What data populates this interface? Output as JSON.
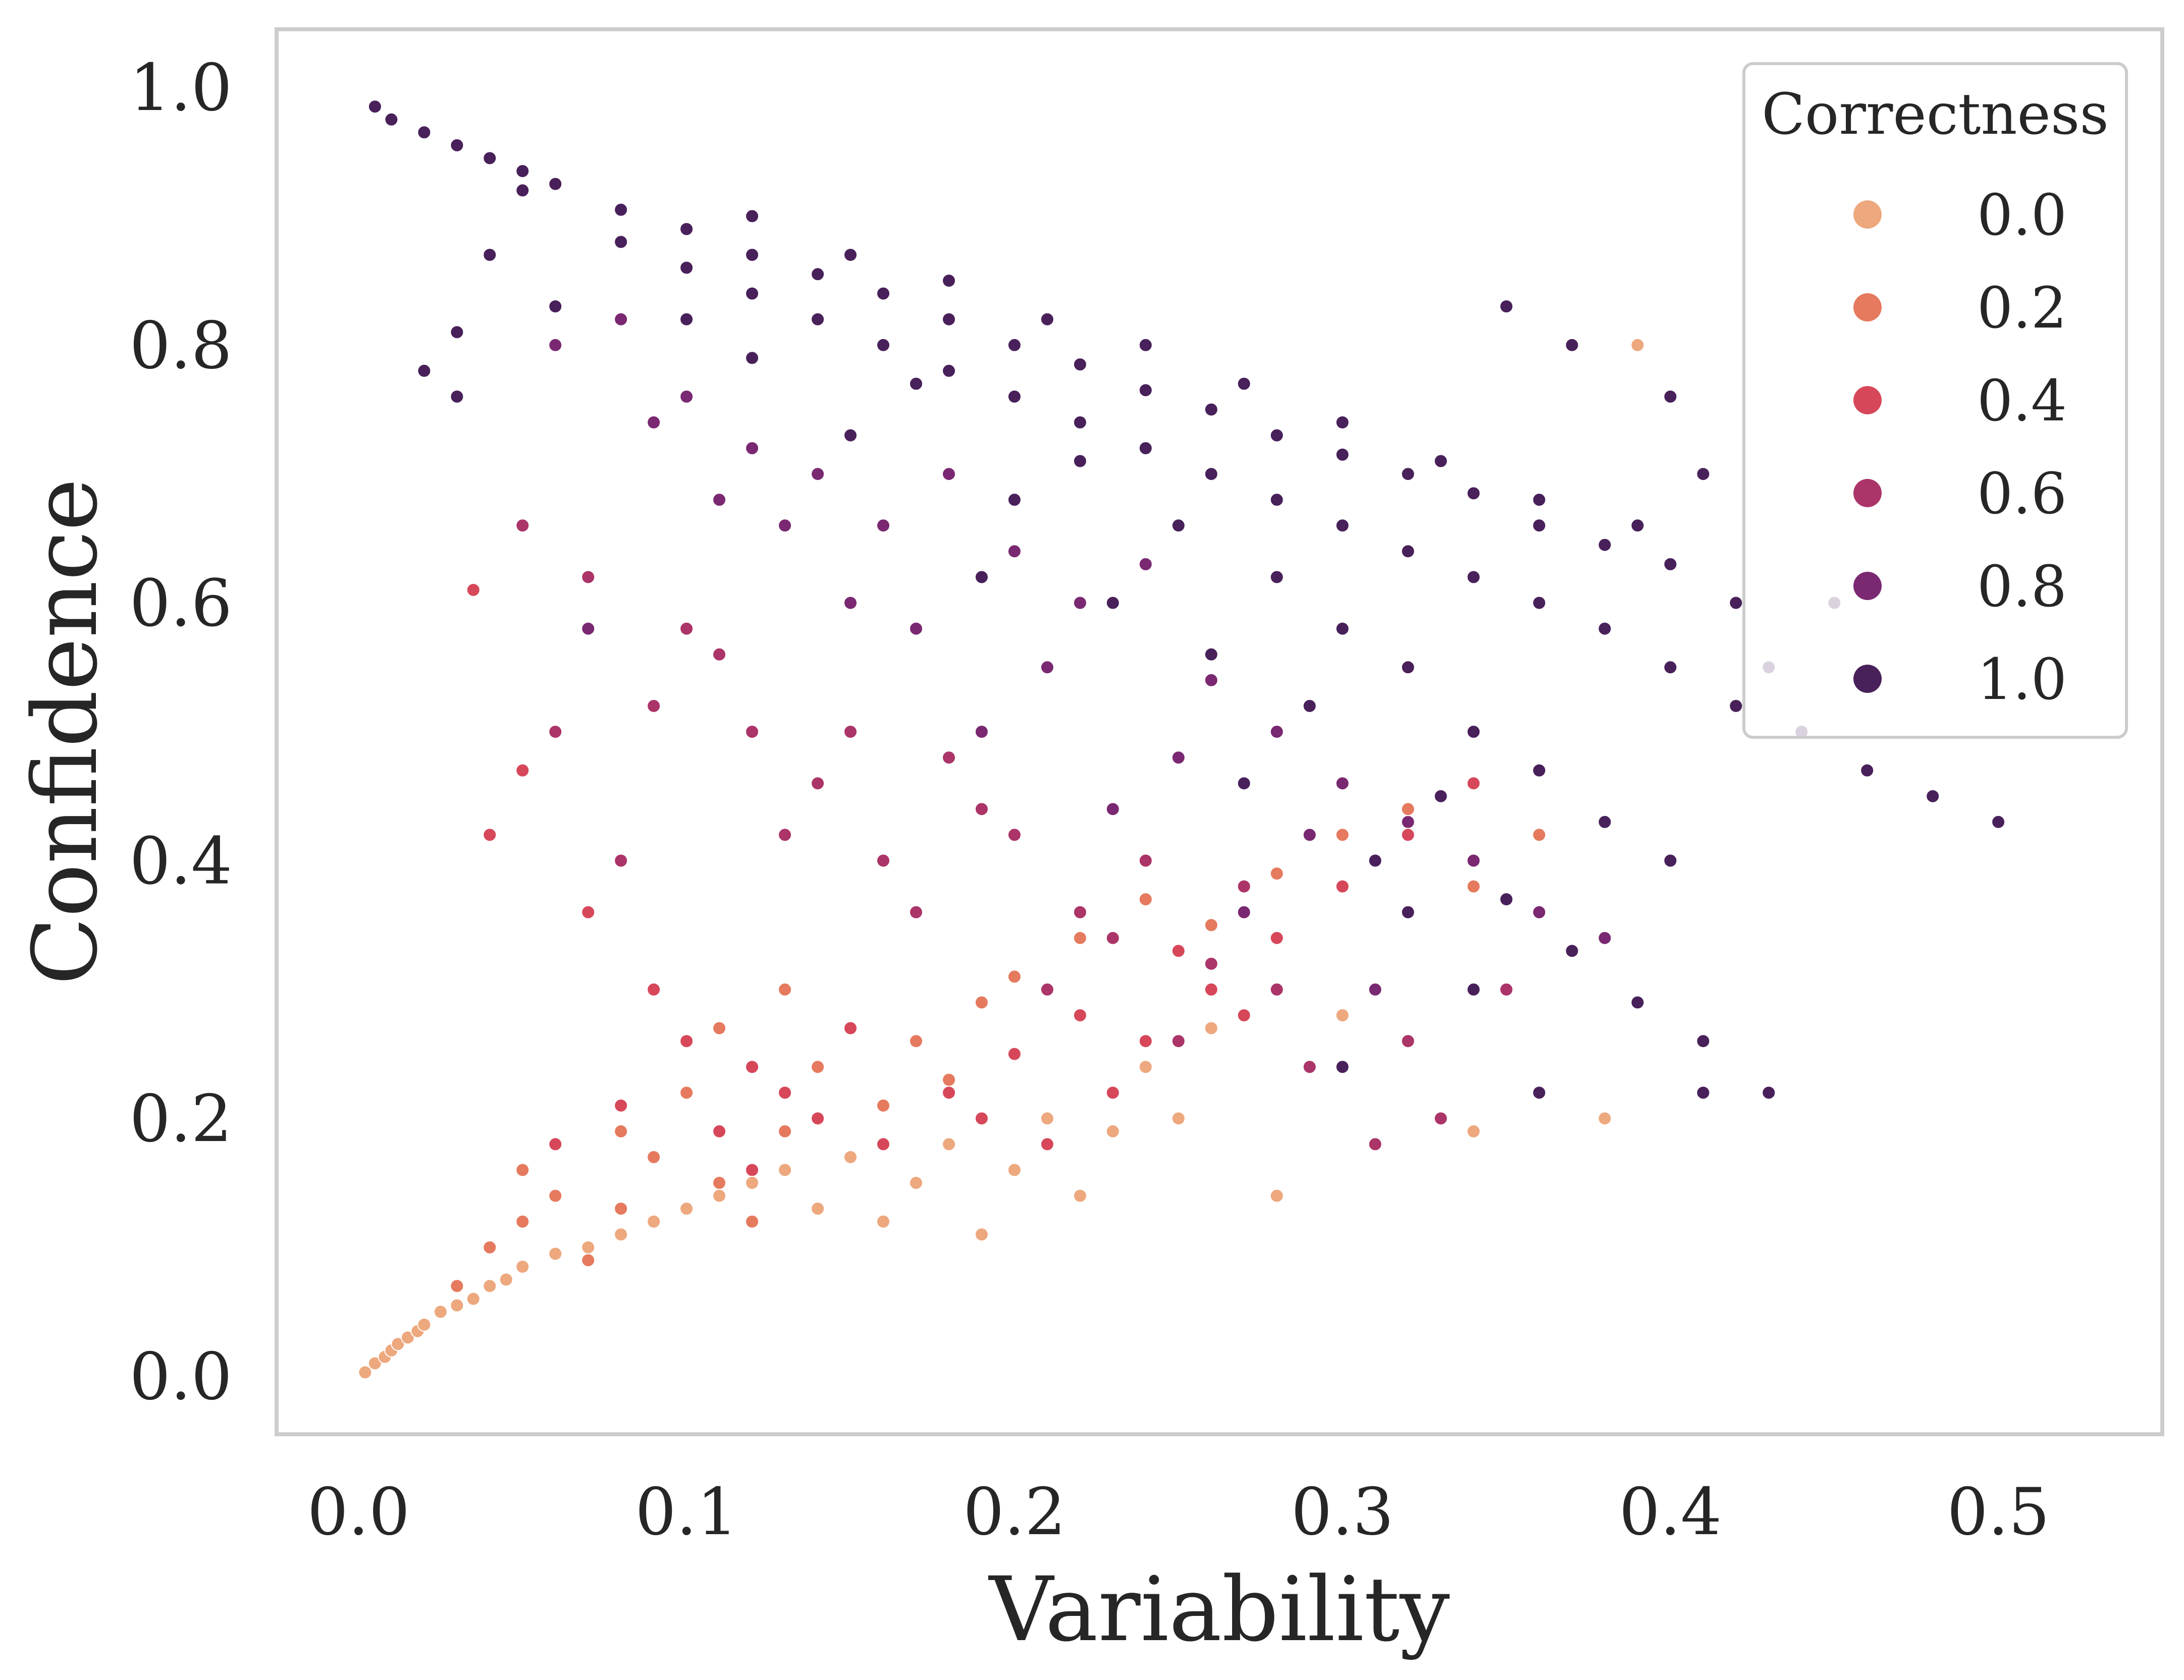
{
  "chart_data": {
    "type": "scatter",
    "title": "",
    "xlabel": "Variability",
    "ylabel": "Confidence",
    "xlim": [
      -0.025,
      0.55
    ],
    "ylim": [
      -0.045,
      1.045
    ],
    "xticks": [
      0.0,
      0.1,
      0.2,
      0.3,
      0.4,
      0.5
    ],
    "xtick_labels": [
      "0.0",
      "0.1",
      "0.2",
      "0.3",
      "0.4",
      "0.5"
    ],
    "yticks": [
      0.0,
      0.2,
      0.4,
      0.6,
      0.8,
      1.0
    ],
    "ytick_labels": [
      "0.0",
      "0.2",
      "0.4",
      "0.6",
      "0.8",
      "1.0"
    ],
    "grid": false,
    "legend": {
      "title": "Correctness",
      "placement": "top-right",
      "entries": [
        {
          "label": "0.0",
          "value": 0.0,
          "color": "#eda87e"
        },
        {
          "label": "0.2",
          "value": 0.2,
          "color": "#e57a5e"
        },
        {
          "label": "0.4",
          "value": 0.4,
          "color": "#d7475a"
        },
        {
          "label": "0.6",
          "value": 0.6,
          "color": "#ab3468"
        },
        {
          "label": "0.8",
          "value": 0.8,
          "color": "#7a2871"
        },
        {
          "label": "1.0",
          "value": 1.0,
          "color": "#48205a"
        }
      ]
    },
    "hue": "Correctness",
    "series": [
      {
        "name": "1.0",
        "color": "#48205a",
        "points": [
          [
            0.005,
            0.985
          ],
          [
            0.01,
            0.975
          ],
          [
            0.02,
            0.965
          ],
          [
            0.03,
            0.955
          ],
          [
            0.04,
            0.945
          ],
          [
            0.05,
            0.935
          ],
          [
            0.06,
            0.925
          ],
          [
            0.08,
            0.905
          ],
          [
            0.1,
            0.89
          ],
          [
            0.12,
            0.87
          ],
          [
            0.14,
            0.855
          ],
          [
            0.16,
            0.84
          ],
          [
            0.18,
            0.82
          ],
          [
            0.2,
            0.8
          ],
          [
            0.22,
            0.785
          ],
          [
            0.24,
            0.765
          ],
          [
            0.26,
            0.75
          ],
          [
            0.28,
            0.73
          ],
          [
            0.3,
            0.715
          ],
          [
            0.32,
            0.7
          ],
          [
            0.34,
            0.685
          ],
          [
            0.36,
            0.66
          ],
          [
            0.38,
            0.645
          ],
          [
            0.4,
            0.63
          ],
          [
            0.42,
            0.6
          ],
          [
            0.05,
            0.92
          ],
          [
            0.08,
            0.88
          ],
          [
            0.1,
            0.86
          ],
          [
            0.12,
            0.84
          ],
          [
            0.14,
            0.82
          ],
          [
            0.16,
            0.8
          ],
          [
            0.18,
            0.78
          ],
          [
            0.2,
            0.76
          ],
          [
            0.22,
            0.74
          ],
          [
            0.24,
            0.72
          ],
          [
            0.26,
            0.7
          ],
          [
            0.28,
            0.68
          ],
          [
            0.3,
            0.66
          ],
          [
            0.32,
            0.64
          ],
          [
            0.34,
            0.62
          ],
          [
            0.36,
            0.6
          ],
          [
            0.38,
            0.58
          ],
          [
            0.4,
            0.55
          ],
          [
            0.42,
            0.52
          ],
          [
            0.12,
            0.9
          ],
          [
            0.15,
            0.87
          ],
          [
            0.18,
            0.85
          ],
          [
            0.21,
            0.82
          ],
          [
            0.24,
            0.8
          ],
          [
            0.27,
            0.77
          ],
          [
            0.3,
            0.74
          ],
          [
            0.33,
            0.71
          ],
          [
            0.36,
            0.68
          ],
          [
            0.39,
            0.66
          ],
          [
            0.25,
            0.66
          ],
          [
            0.28,
            0.62
          ],
          [
            0.3,
            0.58
          ],
          [
            0.32,
            0.55
          ],
          [
            0.34,
            0.5
          ],
          [
            0.36,
            0.47
          ],
          [
            0.38,
            0.43
          ],
          [
            0.4,
            0.4
          ],
          [
            0.37,
            0.33
          ],
          [
            0.39,
            0.29
          ],
          [
            0.41,
            0.26
          ],
          [
            0.35,
            0.37
          ],
          [
            0.33,
            0.45
          ],
          [
            0.29,
            0.52
          ],
          [
            0.44,
            0.5
          ],
          [
            0.46,
            0.47
          ],
          [
            0.48,
            0.45
          ],
          [
            0.5,
            0.43
          ],
          [
            0.43,
            0.55
          ],
          [
            0.45,
            0.6
          ],
          [
            0.41,
            0.7
          ],
          [
            0.4,
            0.76
          ],
          [
            0.37,
            0.8
          ],
          [
            0.35,
            0.83
          ],
          [
            0.43,
            0.22
          ],
          [
            0.41,
            0.22
          ],
          [
            0.36,
            0.22
          ],
          [
            0.02,
            0.78
          ],
          [
            0.03,
            0.76
          ],
          [
            0.03,
            0.81
          ],
          [
            0.04,
            0.87
          ],
          [
            0.06,
            0.83
          ],
          [
            0.1,
            0.82
          ],
          [
            0.15,
            0.73
          ],
          [
            0.12,
            0.79
          ],
          [
            0.17,
            0.77
          ],
          [
            0.22,
            0.71
          ],
          [
            0.2,
            0.68
          ],
          [
            0.19,
            0.62
          ],
          [
            0.23,
            0.6
          ],
          [
            0.26,
            0.56
          ],
          [
            0.27,
            0.46
          ],
          [
            0.31,
            0.4
          ],
          [
            0.32,
            0.36
          ],
          [
            0.34,
            0.3
          ],
          [
            0.3,
            0.24
          ]
        ]
      },
      {
        "name": "0.8",
        "color": "#7a2871",
        "points": [
          [
            0.08,
            0.82
          ],
          [
            0.1,
            0.76
          ],
          [
            0.12,
            0.72
          ],
          [
            0.14,
            0.7
          ],
          [
            0.16,
            0.66
          ],
          [
            0.18,
            0.7
          ],
          [
            0.2,
            0.64
          ],
          [
            0.22,
            0.6
          ],
          [
            0.24,
            0.63
          ],
          [
            0.26,
            0.54
          ],
          [
            0.28,
            0.5
          ],
          [
            0.3,
            0.46
          ],
          [
            0.32,
            0.43
          ],
          [
            0.34,
            0.4
          ],
          [
            0.36,
            0.36
          ],
          [
            0.38,
            0.34
          ],
          [
            0.06,
            0.8
          ],
          [
            0.09,
            0.74
          ],
          [
            0.13,
            0.66
          ],
          [
            0.17,
            0.58
          ],
          [
            0.21,
            0.55
          ],
          [
            0.25,
            0.48
          ],
          [
            0.29,
            0.42
          ],
          [
            0.31,
            0.3
          ],
          [
            0.27,
            0.36
          ],
          [
            0.23,
            0.44
          ],
          [
            0.19,
            0.5
          ],
          [
            0.15,
            0.6
          ],
          [
            0.11,
            0.68
          ],
          [
            0.07,
            0.58
          ]
        ]
      },
      {
        "name": "0.6",
        "color": "#ab3468",
        "points": [
          [
            0.05,
            0.66
          ],
          [
            0.07,
            0.62
          ],
          [
            0.1,
            0.58
          ],
          [
            0.12,
            0.5
          ],
          [
            0.14,
            0.46
          ],
          [
            0.16,
            0.4
          ],
          [
            0.18,
            0.48
          ],
          [
            0.2,
            0.42
          ],
          [
            0.22,
            0.36
          ],
          [
            0.24,
            0.4
          ],
          [
            0.26,
            0.32
          ],
          [
            0.28,
            0.3
          ],
          [
            0.3,
            0.28
          ],
          [
            0.32,
            0.26
          ],
          [
            0.09,
            0.52
          ],
          [
            0.13,
            0.42
          ],
          [
            0.17,
            0.36
          ],
          [
            0.21,
            0.3
          ],
          [
            0.25,
            0.26
          ],
          [
            0.27,
            0.38
          ],
          [
            0.11,
            0.56
          ],
          [
            0.15,
            0.5
          ],
          [
            0.19,
            0.44
          ],
          [
            0.23,
            0.34
          ],
          [
            0.29,
            0.24
          ],
          [
            0.06,
            0.5
          ],
          [
            0.08,
            0.4
          ],
          [
            0.33,
            0.2
          ],
          [
            0.31,
            0.18
          ],
          [
            0.35,
            0.3
          ]
        ]
      },
      {
        "name": "0.4",
        "color": "#d7475a",
        "points": [
          [
            0.035,
            0.61
          ],
          [
            0.05,
            0.47
          ],
          [
            0.04,
            0.42
          ],
          [
            0.07,
            0.36
          ],
          [
            0.09,
            0.3
          ],
          [
            0.1,
            0.26
          ],
          [
            0.12,
            0.24
          ],
          [
            0.13,
            0.22
          ],
          [
            0.14,
            0.2
          ],
          [
            0.15,
            0.27
          ],
          [
            0.16,
            0.18
          ],
          [
            0.18,
            0.22
          ],
          [
            0.2,
            0.25
          ],
          [
            0.22,
            0.28
          ],
          [
            0.24,
            0.26
          ],
          [
            0.26,
            0.3
          ],
          [
            0.28,
            0.34
          ],
          [
            0.3,
            0.38
          ],
          [
            0.32,
            0.42
          ],
          [
            0.34,
            0.46
          ],
          [
            0.11,
            0.19
          ],
          [
            0.12,
            0.16
          ],
          [
            0.17,
            0.15
          ],
          [
            0.19,
            0.2
          ],
          [
            0.21,
            0.18
          ],
          [
            0.23,
            0.22
          ],
          [
            0.08,
            0.21
          ],
          [
            0.06,
            0.18
          ],
          [
            0.25,
            0.33
          ],
          [
            0.27,
            0.28
          ]
        ]
      },
      {
        "name": "0.2",
        "color": "#e57a5e",
        "points": [
          [
            0.04,
            0.1
          ],
          [
            0.05,
            0.12
          ],
          [
            0.06,
            0.14
          ],
          [
            0.07,
            0.09
          ],
          [
            0.08,
            0.13
          ],
          [
            0.09,
            0.17
          ],
          [
            0.1,
            0.22
          ],
          [
            0.11,
            0.15
          ],
          [
            0.12,
            0.12
          ],
          [
            0.13,
            0.19
          ],
          [
            0.14,
            0.24
          ],
          [
            0.15,
            0.17
          ],
          [
            0.16,
            0.21
          ],
          [
            0.17,
            0.26
          ],
          [
            0.18,
            0.23
          ],
          [
            0.19,
            0.29
          ],
          [
            0.2,
            0.31
          ],
          [
            0.22,
            0.34
          ],
          [
            0.24,
            0.37
          ],
          [
            0.26,
            0.35
          ],
          [
            0.28,
            0.39
          ],
          [
            0.3,
            0.42
          ],
          [
            0.32,
            0.44
          ],
          [
            0.34,
            0.38
          ],
          [
            0.36,
            0.42
          ],
          [
            0.03,
            0.07
          ],
          [
            0.05,
            0.16
          ],
          [
            0.08,
            0.19
          ],
          [
            0.11,
            0.27
          ],
          [
            0.13,
            0.3
          ]
        ]
      },
      {
        "name": "0.0",
        "color": "#eda87e",
        "points": [
          [
            0.002,
            0.003
          ],
          [
            0.005,
            0.01
          ],
          [
            0.008,
            0.015
          ],
          [
            0.01,
            0.02
          ],
          [
            0.012,
            0.025
          ],
          [
            0.015,
            0.03
          ],
          [
            0.018,
            0.035
          ],
          [
            0.02,
            0.04
          ],
          [
            0.025,
            0.05
          ],
          [
            0.03,
            0.055
          ],
          [
            0.035,
            0.06
          ],
          [
            0.04,
            0.07
          ],
          [
            0.045,
            0.075
          ],
          [
            0.05,
            0.085
          ],
          [
            0.06,
            0.095
          ],
          [
            0.07,
            0.1
          ],
          [
            0.08,
            0.11
          ],
          [
            0.09,
            0.12
          ],
          [
            0.1,
            0.13
          ],
          [
            0.11,
            0.14
          ],
          [
            0.12,
            0.15
          ],
          [
            0.13,
            0.16
          ],
          [
            0.14,
            0.13
          ],
          [
            0.15,
            0.17
          ],
          [
            0.16,
            0.12
          ],
          [
            0.17,
            0.15
          ],
          [
            0.18,
            0.18
          ],
          [
            0.19,
            0.11
          ],
          [
            0.2,
            0.16
          ],
          [
            0.21,
            0.2
          ],
          [
            0.22,
            0.14
          ],
          [
            0.23,
            0.19
          ],
          [
            0.24,
            0.24
          ],
          [
            0.25,
            0.2
          ],
          [
            0.26,
            0.27
          ],
          [
            0.28,
            0.14
          ],
          [
            0.3,
            0.28
          ],
          [
            0.34,
            0.19
          ],
          [
            0.38,
            0.2
          ],
          [
            0.39,
            0.8
          ]
        ]
      }
    ]
  }
}
